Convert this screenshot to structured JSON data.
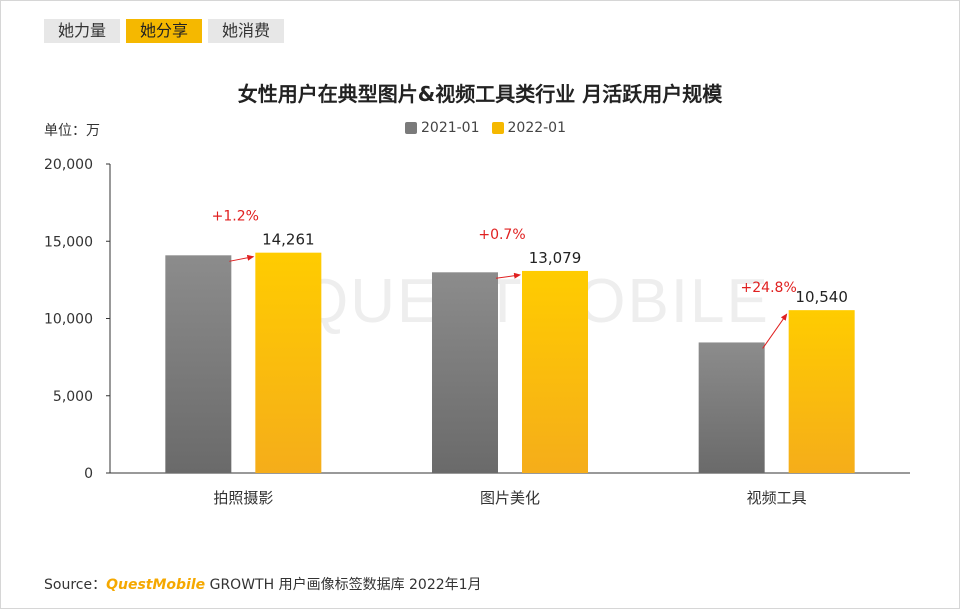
{
  "tabs": [
    {
      "label": "她力量",
      "active": false
    },
    {
      "label": "她分享",
      "active": true
    },
    {
      "label": "她消费",
      "active": false
    }
  ],
  "unit_label": "单位：万",
  "watermark": "QUESTMOBILE",
  "source": {
    "prefix": "Source：",
    "brand": "QuestMobile",
    "suffix": " GROWTH 用户画像标签数据库 2022年1月"
  },
  "colors": {
    "series_2021": "#7a7a7a",
    "series_2022": "#f5b800",
    "growth_text": "#e02020",
    "axis": "#333333"
  },
  "chart_data": {
    "type": "bar",
    "title": "女性用户在典型图片&视频工具类行业 月活跃用户规模",
    "xlabel": "",
    "ylabel": "",
    "ylim": [
      0,
      20000
    ],
    "yticks": [
      0,
      5000,
      10000,
      15000,
      20000
    ],
    "ytick_labels": [
      "0",
      "5,000",
      "10,000",
      "15,000",
      "20,000"
    ],
    "categories": [
      "拍照摄影",
      "图片美化",
      "视频工具"
    ],
    "series": [
      {
        "name": "2021-01",
        "values": [
          14090,
          12990,
          8450
        ]
      },
      {
        "name": "2022-01",
        "values": [
          14261,
          13079,
          10540
        ],
        "labels": [
          "14,261",
          "13,079",
          "10,540"
        ]
      }
    ],
    "growth": [
      "+1.2%",
      "+0.7%",
      "+24.8%"
    ],
    "legend_position": "top-center",
    "grid": false
  }
}
